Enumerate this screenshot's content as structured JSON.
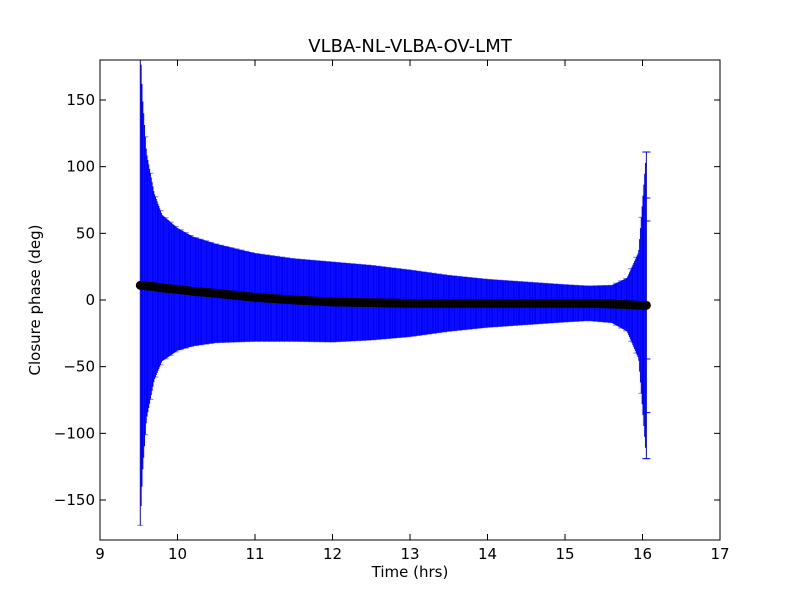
{
  "chart_data": {
    "type": "scatter",
    "title": "VLBA-NL-VLBA-OV-LMT",
    "xlabel": "Time (hrs)",
    "ylabel": "Closure phase (deg)",
    "xlim": [
      9,
      17
    ],
    "ylim": [
      -180,
      180
    ],
    "xticks": [
      "9",
      "10",
      "11",
      "12",
      "13",
      "14",
      "15",
      "16",
      "17"
    ],
    "yticks": [
      "−150",
      "−100",
      "−50",
      "0",
      "50",
      "100",
      "150"
    ],
    "grid": false,
    "colors": {
      "errorbar": "#0000ff",
      "marker": "#000000"
    },
    "series": [
      {
        "x": [
          9.52,
          9.55,
          9.6,
          9.7,
          9.8,
          10.0,
          10.2,
          10.5,
          11.0,
          11.5,
          12.0,
          12.5,
          13.0,
          13.5,
          14.0,
          14.5,
          15.0,
          15.3,
          15.6,
          15.8,
          15.95,
          16.05
        ],
        "y": [
          11,
          11,
          10.5,
          10,
          9,
          8,
          6.5,
          5,
          2,
          0,
          -1.5,
          -2,
          -2.5,
          -2.5,
          -2.5,
          -2.5,
          -2.5,
          -2.5,
          -3,
          -3.5,
          -4,
          -4
        ],
        "yerr": [
          180,
          140,
          100,
          70,
          55,
          46,
          41,
          37,
          33,
          31,
          30,
          28,
          25,
          21,
          18,
          16,
          14,
          13,
          14,
          20,
          40,
          115
        ]
      }
    ]
  }
}
